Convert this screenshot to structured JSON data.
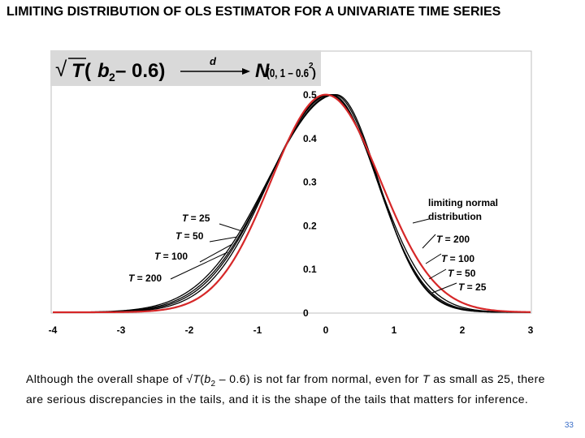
{
  "slide": {
    "title": "LIMITING DISTRIBUTION OF OLS ESTIMATOR FOR A UNIVARIATE TIME SERIES",
    "page_number": "33",
    "caption": {
      "part1": "Although the overall shape of √",
      "T1": "T",
      "part2": "(",
      "b": "b",
      "sub": "2",
      "part3": " – 0.6) is not far from normal, even for ",
      "T2": "T",
      "part4": " as small as 25, there are serious discrepancies in the tails, and it is the shape of the tails that matters for inference."
    },
    "formula": {
      "sqrt": "√",
      "T": "T",
      "open": " (",
      "b": "b",
      "sub": "2",
      "minus": " – 0.6)",
      "d": "d",
      "N": "N",
      "args": " (0, 1 – 0.6",
      "sup": "2",
      "close": " )"
    }
  },
  "chart_data": {
    "type": "line",
    "xlim": [
      -4,
      3
    ],
    "ylim": [
      0,
      0.5
    ],
    "x_ticks": [
      "-4",
      "-3",
      "-2",
      "-1",
      "0",
      "1",
      "2",
      "3"
    ],
    "y_ticks": [
      "0",
      "0.1",
      "0.2",
      "0.3",
      "0.4",
      "0.5"
    ],
    "limiting_variance": 0.64,
    "series": [
      {
        "name": "limiting normal distribution",
        "color": "#d62728",
        "kind": "normal",
        "mode": 0.0,
        "sigma_left": 0.8,
        "sigma_right": 0.8
      },
      {
        "name": "T = 25",
        "color": "#000000",
        "kind": "skewed",
        "mode": 0.15,
        "sigma_left": 1.0,
        "sigma_right": 0.62
      },
      {
        "name": "T = 50",
        "color": "#000000",
        "kind": "skewed",
        "mode": 0.12,
        "sigma_left": 0.96,
        "sigma_right": 0.64
      },
      {
        "name": "T = 100",
        "color": "#000000",
        "kind": "skewed",
        "mode": 0.08,
        "sigma_left": 0.92,
        "sigma_right": 0.67
      },
      {
        "name": "T = 200",
        "color": "#000000",
        "kind": "skewed",
        "mode": 0.05,
        "sigma_left": 0.88,
        "sigma_right": 0.71
      }
    ],
    "labels_left": [
      "T = 25",
      "T = 50",
      "T = 100",
      "T = 200"
    ],
    "labels_right": [
      "T = 200",
      "T = 100",
      "T = 50",
      "T = 25"
    ],
    "limiting_label": [
      "limiting normal",
      "distribution"
    ]
  }
}
